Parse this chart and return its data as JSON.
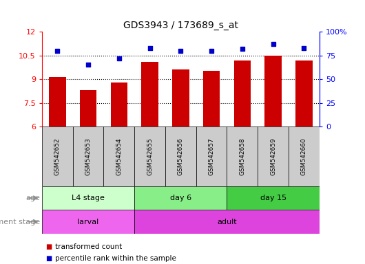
{
  "title": "GDS3943 / 173689_s_at",
  "samples": [
    "GSM542652",
    "GSM542653",
    "GSM542654",
    "GSM542655",
    "GSM542656",
    "GSM542657",
    "GSM542658",
    "GSM542659",
    "GSM542660"
  ],
  "transformed_count": [
    9.15,
    8.3,
    8.8,
    10.1,
    9.6,
    9.55,
    10.2,
    10.5,
    10.2
  ],
  "percentile_rank": [
    80,
    65,
    72,
    83,
    80,
    80,
    82,
    87,
    83
  ],
  "ylim_left": [
    6,
    12
  ],
  "ylim_right": [
    0,
    100
  ],
  "yticks_left": [
    6,
    7.5,
    9,
    10.5,
    12
  ],
  "yticks_right": [
    0,
    25,
    50,
    75,
    100
  ],
  "ytick_labels_right": [
    "0",
    "25",
    "50",
    "75",
    "100%"
  ],
  "bar_color": "#cc0000",
  "dot_color": "#0000cc",
  "age_groups": [
    {
      "label": "L4 stage",
      "start": 0,
      "end": 3,
      "color": "#ccffcc"
    },
    {
      "label": "day 6",
      "start": 3,
      "end": 6,
      "color": "#88ee88"
    },
    {
      "label": "day 15",
      "start": 6,
      "end": 9,
      "color": "#44cc44"
    }
  ],
  "dev_groups": [
    {
      "label": "larval",
      "start": 0,
      "end": 3,
      "color": "#ee66ee"
    },
    {
      "label": "adult",
      "start": 3,
      "end": 9,
      "color": "#dd44dd"
    }
  ],
  "age_label": "age",
  "dev_label": "development stage",
  "legend_bar_label": "transformed count",
  "legend_dot_label": "percentile rank within the sample",
  "sample_bg_color": "#cccccc",
  "background_color": "#ffffff"
}
